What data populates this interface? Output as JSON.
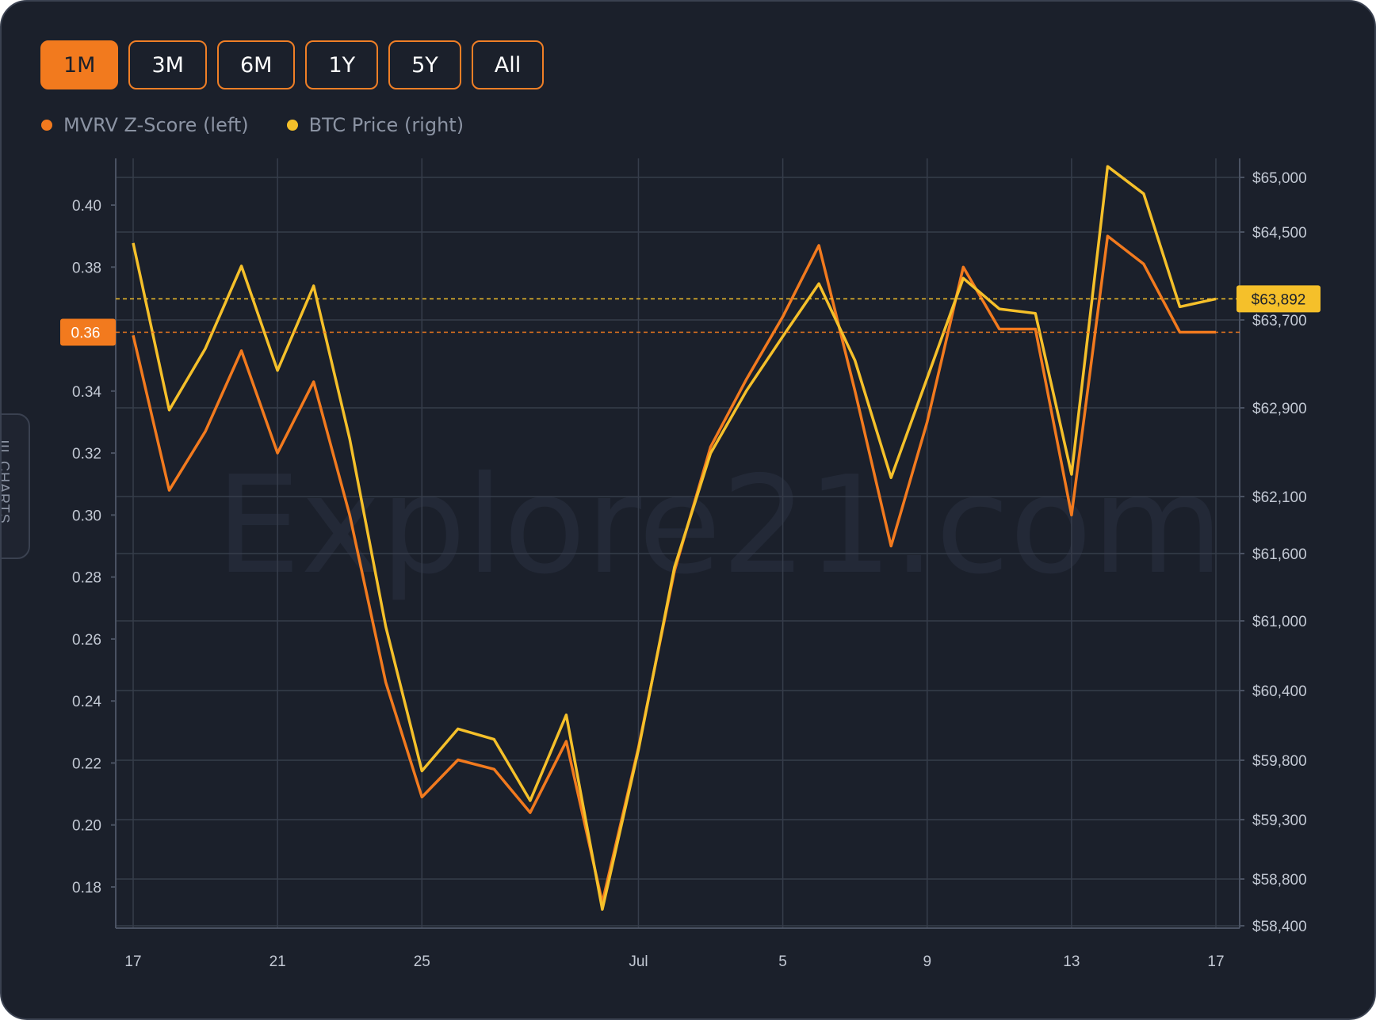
{
  "range_buttons": [
    {
      "label": "1M",
      "active": true
    },
    {
      "label": "3M",
      "active": false
    },
    {
      "label": "6M",
      "active": false
    },
    {
      "label": "1Y",
      "active": false
    },
    {
      "label": "5Y",
      "active": false
    },
    {
      "label": "All",
      "active": false
    }
  ],
  "legend": [
    {
      "label": "MVRV Z-Score (left)",
      "color": "#f27a1e"
    },
    {
      "label": "BTC Price (right)",
      "color": "#f5c02a"
    }
  ],
  "side_tab_label": "☰ CHARTS",
  "watermark": "Explore21.com",
  "chart_data": {
    "type": "line",
    "x_ticks": [
      {
        "label": "17",
        "day": 0
      },
      {
        "label": "21",
        "day": 4
      },
      {
        "label": "25",
        "day": 8
      },
      {
        "label": "Jul",
        "day": 14
      },
      {
        "label": "5",
        "day": 18
      },
      {
        "label": "9",
        "day": 22
      },
      {
        "label": "13",
        "day": 26
      },
      {
        "label": "17",
        "day": 30
      }
    ],
    "left_axis": {
      "ticks": [
        "0.18",
        "0.20",
        "0.22",
        "0.24",
        "0.26",
        "0.28",
        "0.30",
        "0.32",
        "0.34",
        "0.36",
        "0.38",
        "0.40"
      ],
      "current": "0.36"
    },
    "right_axis": {
      "ticks": [
        "$58,400",
        "$58,800",
        "$59,300",
        "$59,800",
        "$60,400",
        "$61,000",
        "$61,600",
        "$62,100",
        "$62,900",
        "$63,700",
        "$64,500",
        "$65,000"
      ],
      "current": "$63,892"
    },
    "series": [
      {
        "name": "MVRV Z-Score (left)",
        "color": "#f27a1e",
        "axis": "left",
        "values": [
          0.358,
          0.308,
          0.327,
          0.353,
          0.32,
          0.343,
          0.3,
          0.246,
          0.209,
          0.221,
          0.218,
          0.204,
          0.227,
          0.175,
          0.225,
          0.282,
          0.322,
          0.344,
          0.364,
          0.387,
          0.34,
          0.29,
          0.33,
          0.38,
          0.36,
          0.36,
          0.3,
          0.39,
          0.381,
          0.359,
          0.359
        ]
      },
      {
        "name": "BTC Price (right)",
        "color": "#f5c02a",
        "axis": "right",
        "values": [
          64400,
          62880,
          63440,
          64190,
          63240,
          64010,
          62620,
          60950,
          59710,
          60070,
          59980,
          59460,
          60190,
          58540,
          59890,
          61480,
          62490,
          63060,
          63550,
          64030,
          63330,
          62270,
          63170,
          64080,
          63800,
          63760,
          62300,
          65100,
          64850,
          63820,
          63892
        ]
      }
    ]
  }
}
